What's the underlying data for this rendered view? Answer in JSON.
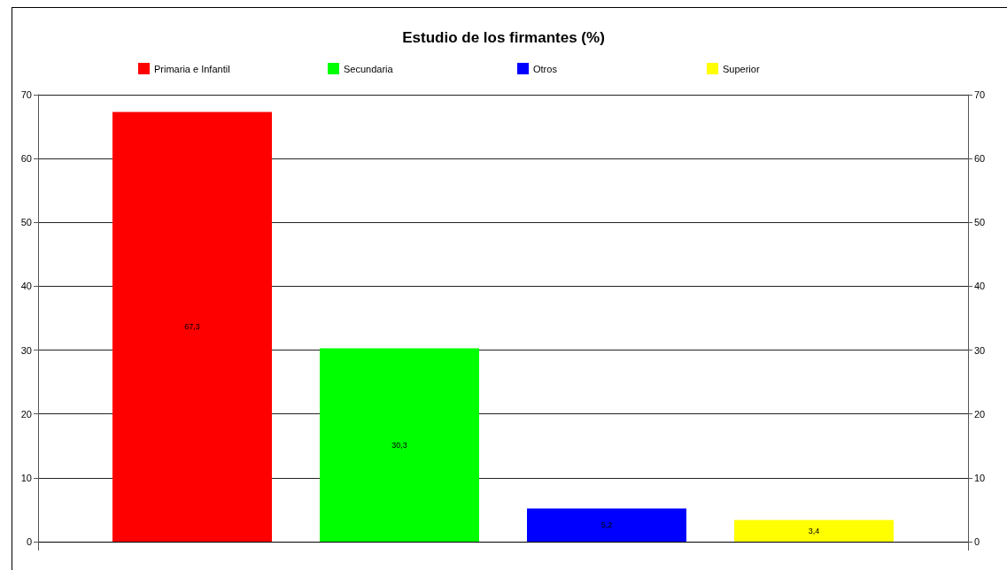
{
  "chart_data": {
    "type": "bar",
    "title": "Estudio de los firmantes (%)",
    "categories": [
      null
    ],
    "series": [
      {
        "name": "Primaria e Infantil",
        "color": "#ff0000",
        "values": [
          67.3
        ],
        "value_labels": [
          "67,3"
        ]
      },
      {
        "name": "Secundaria",
        "color": "#00ff00",
        "values": [
          30.3
        ],
        "value_labels": [
          "30,3"
        ]
      },
      {
        "name": "Otros",
        "color": "#0000ff",
        "values": [
          5.2
        ],
        "value_labels": [
          "5,2"
        ]
      },
      {
        "name": "Superior",
        "color": "#ffff00",
        "values": [
          3.4
        ],
        "value_labels": [
          "3,4"
        ]
      }
    ],
    "ylim": [
      0,
      70
    ],
    "yticks": [
      0,
      10,
      20,
      30,
      40,
      50,
      60,
      70
    ],
    "y2lim": [
      0,
      70
    ],
    "y2ticks": [
      0,
      10,
      20,
      30,
      40,
      50,
      60,
      70
    ],
    "grid": "y",
    "legend": "top"
  }
}
